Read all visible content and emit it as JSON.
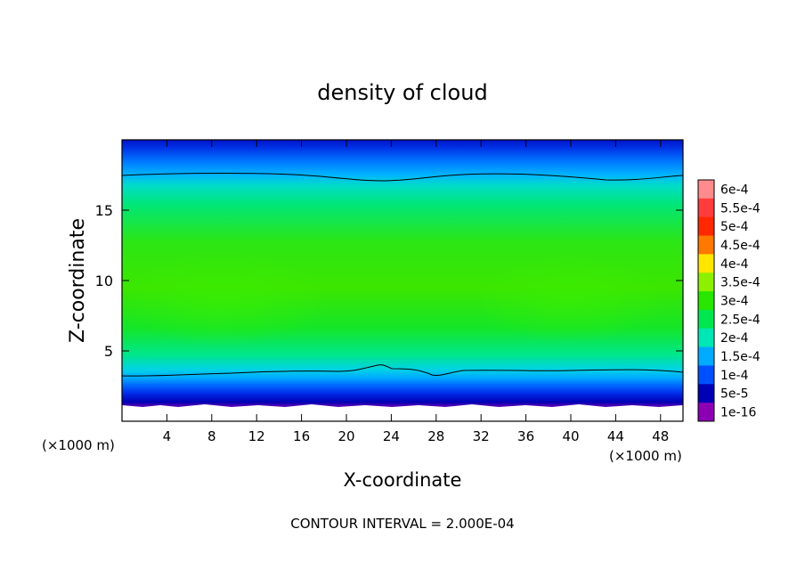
{
  "chart_data": {
    "type": "heatmap",
    "title": "density of cloud",
    "xlabel": "X-coordinate",
    "ylabel": "Z-coordinate",
    "x_unit_left": "(×1000 m)",
    "x_unit_right": "(×1000 m)",
    "xlim": [
      0,
      50
    ],
    "ylim": [
      0,
      20
    ],
    "x_ticks": [
      {
        "value": 4,
        "label": "4"
      },
      {
        "value": 8,
        "label": "8"
      },
      {
        "value": 12,
        "label": "12"
      },
      {
        "value": 16,
        "label": "16"
      },
      {
        "value": 20,
        "label": "20"
      },
      {
        "value": 24,
        "label": "24"
      },
      {
        "value": 28,
        "label": "28"
      },
      {
        "value": 32,
        "label": "32"
      },
      {
        "value": 36,
        "label": "36"
      },
      {
        "value": 40,
        "label": "40"
      },
      {
        "value": 44,
        "label": "44"
      },
      {
        "value": 48,
        "label": "48"
      }
    ],
    "y_ticks": [
      {
        "value": 5,
        "label": "5"
      },
      {
        "value": 10,
        "label": "10"
      },
      {
        "value": 15,
        "label": "15"
      }
    ],
    "colorbar": {
      "levels": [
        {
          "label": "6e-4",
          "color": "#ff8c8c"
        },
        {
          "label": "5.5e-4",
          "color": "#ff3c3c"
        },
        {
          "label": "5e-4",
          "color": "#ff2800"
        },
        {
          "label": "4.5e-4",
          "color": "#ff7800"
        },
        {
          "label": "4e-4",
          "color": "#ffe600"
        },
        {
          "label": "3.5e-4",
          "color": "#8cf000"
        },
        {
          "label": "3e-4",
          "color": "#28e600"
        },
        {
          "label": "2.5e-4",
          "color": "#00e650"
        },
        {
          "label": "2e-4",
          "color": "#00e6b4"
        },
        {
          "label": "1.5e-4",
          "color": "#00aaff"
        },
        {
          "label": "1e-4",
          "color": "#0050ff"
        },
        {
          "label": "5e-5",
          "color": "#0000b4"
        },
        {
          "label": "1e-16",
          "color": "#8c00b4"
        }
      ]
    },
    "contour_levels_drawn": [
      0.0002
    ],
    "footer": "CONTOUR INTERVAL = 2.000E-04"
  }
}
